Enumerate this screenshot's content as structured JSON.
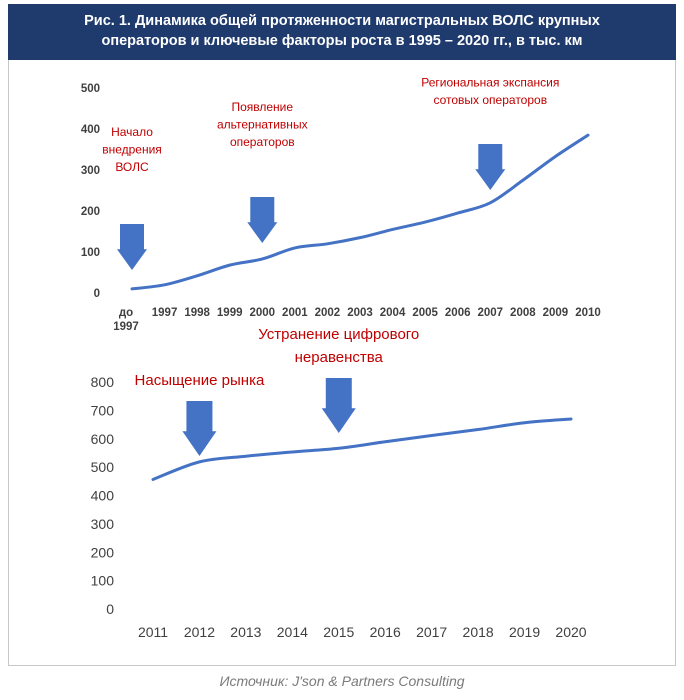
{
  "header": {
    "line1": "Рис. 1. Динамика общей протяженности магистральных ВОЛС крупных",
    "line2": "операторов и ключевые факторы роста в 1995 – 2020 гг., в тыс. км"
  },
  "source": "Источник: J'son & Partners Consulting",
  "colors": {
    "line": "#4472c4",
    "arrow": "#4472c4",
    "annotation": "#c00000",
    "header": "#1f3b6d"
  },
  "chart_data": [
    {
      "type": "line",
      "categories": [
        "до 1997",
        "1997",
        "1998",
        "1999",
        "2000",
        "2001",
        "2002",
        "2003",
        "2004",
        "2005",
        "2006",
        "2007",
        "2008",
        "2009",
        "2010"
      ],
      "values": [
        10,
        20,
        42,
        68,
        83,
        110,
        120,
        135,
        155,
        173,
        195,
        220,
        275,
        333,
        385
      ],
      "ylim": [
        0,
        500
      ],
      "yticks": [
        0,
        100,
        200,
        300,
        400,
        500
      ],
      "annotations": [
        {
          "lines": [
            "Начало",
            "внедрения",
            "ВОЛС"
          ],
          "category": "до 1997"
        },
        {
          "lines": [
            "Появление",
            "альтернативных",
            "операторов"
          ],
          "category": "2000"
        },
        {
          "lines": [
            "Региональная экспансия",
            "сотовых операторов"
          ],
          "category": "2007"
        }
      ]
    },
    {
      "type": "line",
      "categories": [
        "2011",
        "2012",
        "2013",
        "2014",
        "2015",
        "2016",
        "2017",
        "2018",
        "2019",
        "2020"
      ],
      "values": [
        460,
        522,
        542,
        557,
        570,
        593,
        615,
        636,
        660,
        673
      ],
      "ylim": [
        0,
        800
      ],
      "yticks": [
        0,
        100,
        200,
        300,
        400,
        500,
        600,
        700,
        800
      ],
      "annotations": [
        {
          "lines": [
            "Насыщение рынка"
          ],
          "category": "2012"
        },
        {
          "lines": [
            "Устранение цифрового",
            "неравенства"
          ],
          "category": "2015"
        }
      ]
    }
  ]
}
